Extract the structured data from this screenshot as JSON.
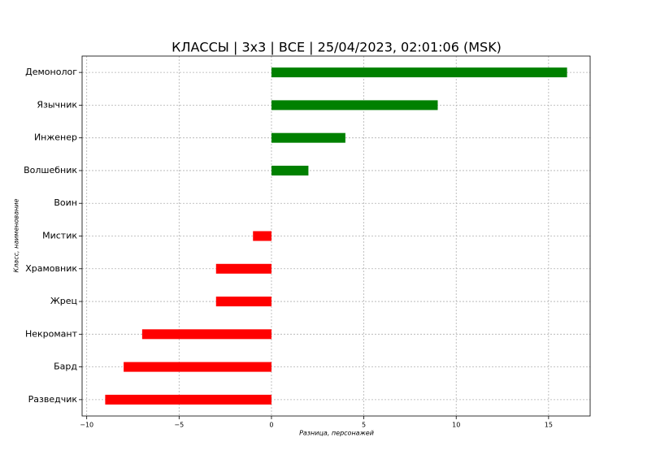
{
  "chart_data": {
    "type": "barh",
    "title": "КЛАССЫ | 3x3 | ВСЕ | 25/04/2023, 02:01:06 (MSK)",
    "xlabel": "Разница, персонажей",
    "ylabel": "Класс, наименование",
    "categories": [
      "Демонолог",
      "Язычник",
      "Инженер",
      "Волшебник",
      "Воин",
      "Мистик",
      "Храмовник",
      "Жрец",
      "Некромант",
      "Бард",
      "Разведчик"
    ],
    "values": [
      16,
      9,
      4,
      2,
      0,
      -1,
      -3,
      -3,
      -7,
      -8,
      -9
    ],
    "positive_color": "#008000",
    "negative_color": "#ff0000",
    "xlim": [
      -10.25,
      17.25
    ],
    "xticks": [
      {
        "value": -10,
        "label": "−10"
      },
      {
        "value": -5,
        "label": "−5"
      },
      0,
      5,
      10,
      15
    ],
    "grid": true
  }
}
